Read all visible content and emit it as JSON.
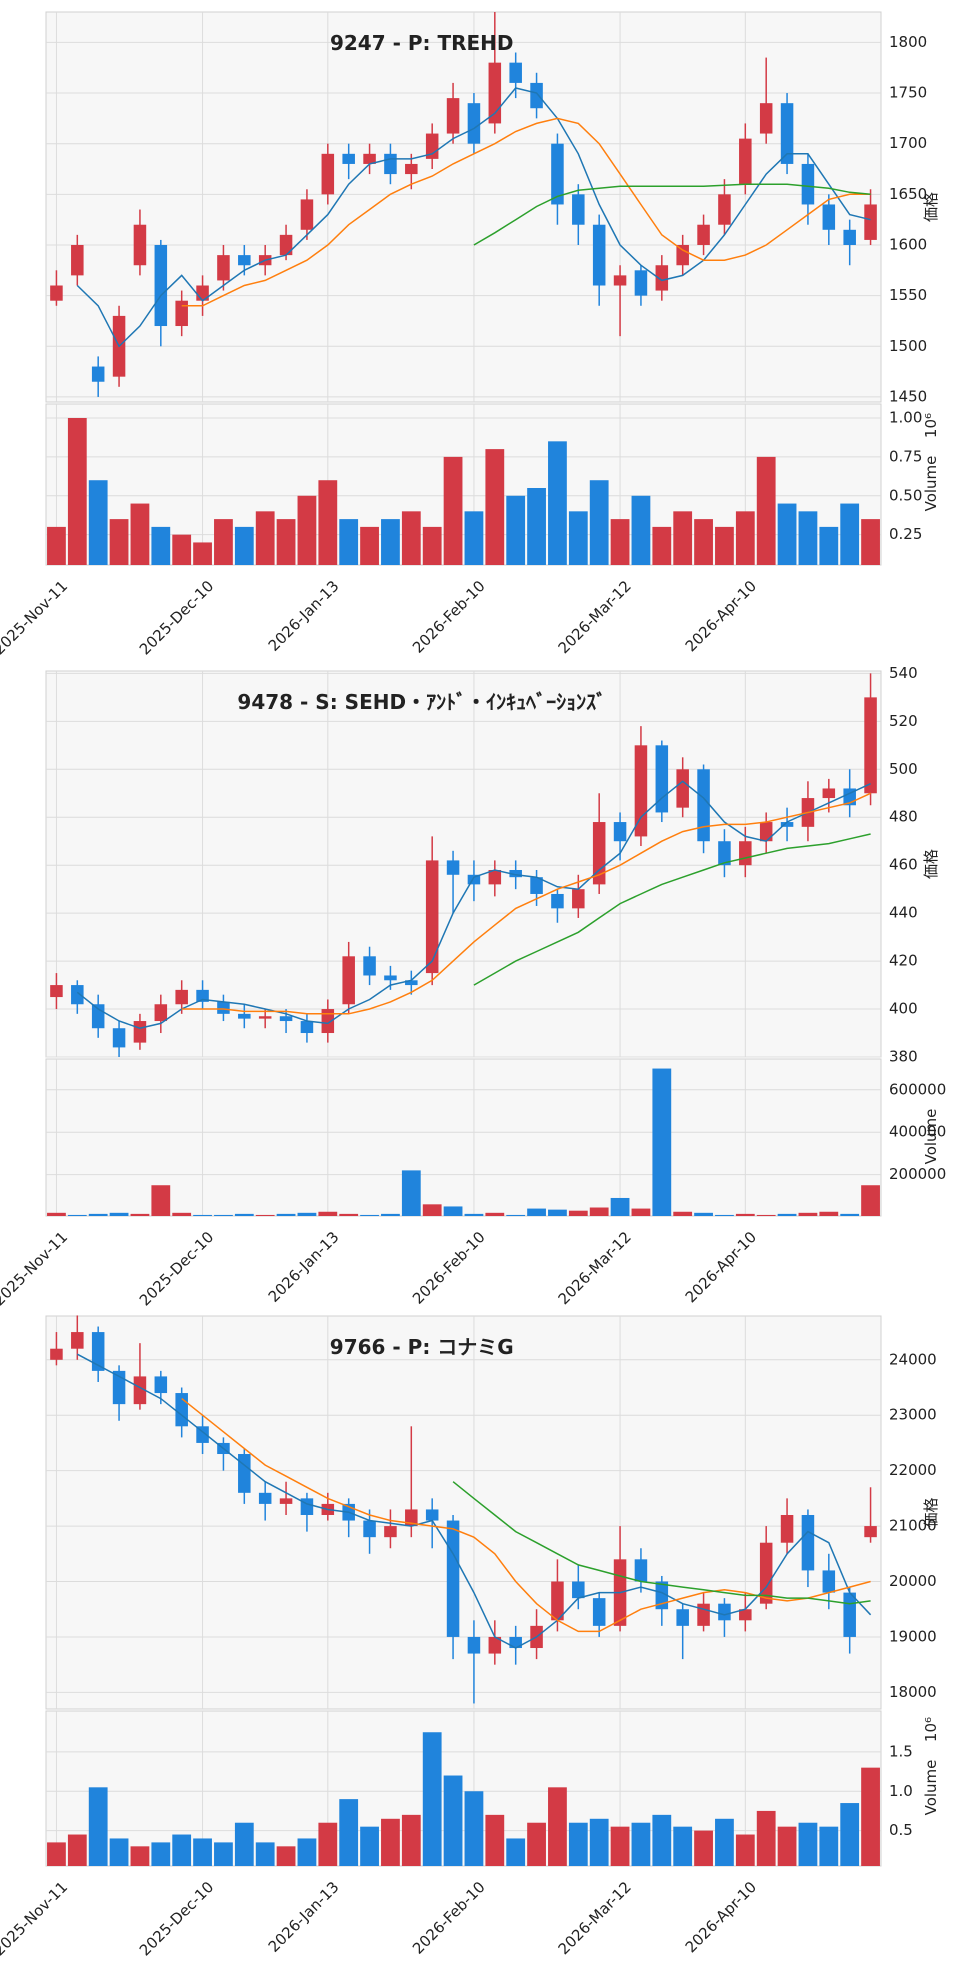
{
  "chart_data": [
    {
      "type": "candlestick",
      "title": "9247 - P: TREHD",
      "categories": [
        "2025-Nov-11",
        null,
        null,
        null,
        null,
        null,
        null,
        "2025-Dec-10",
        null,
        null,
        null,
        null,
        null,
        "2026-Jan-13",
        null,
        null,
        null,
        null,
        null,
        null,
        "2026-Feb-10",
        null,
        null,
        null,
        null,
        null,
        null,
        "2026-Mar-12",
        null,
        null,
        null,
        null,
        null,
        "2026-Apr-10",
        null,
        null,
        null,
        null,
        null,
        null
      ],
      "open": [
        1545,
        1570,
        1480,
        1470,
        1580,
        1600,
        1520,
        1545,
        1565,
        1590,
        1580,
        1590,
        1615,
        1650,
        1690,
        1680,
        1690,
        1670,
        1685,
        1710,
        1740,
        1720,
        1780,
        1760,
        1700,
        1650,
        1620,
        1560,
        1575,
        1555,
        1580,
        1600,
        1620,
        1660,
        1710,
        1740,
        1680,
        1640,
        1615,
        1605
      ],
      "high": [
        1575,
        1610,
        1490,
        1540,
        1635,
        1605,
        1555,
        1570,
        1600,
        1600,
        1600,
        1620,
        1655,
        1700,
        1700,
        1700,
        1700,
        1690,
        1720,
        1760,
        1750,
        1830,
        1790,
        1770,
        1710,
        1660,
        1630,
        1580,
        1580,
        1590,
        1610,
        1630,
        1665,
        1720,
        1785,
        1750,
        1690,
        1650,
        1625,
        1655
      ],
      "low": [
        1540,
        1560,
        1450,
        1460,
        1570,
        1500,
        1510,
        1530,
        1555,
        1570,
        1570,
        1585,
        1605,
        1640,
        1665,
        1670,
        1660,
        1655,
        1675,
        1700,
        1690,
        1710,
        1745,
        1725,
        1620,
        1600,
        1540,
        1510,
        1540,
        1545,
        1570,
        1590,
        1610,
        1650,
        1700,
        1670,
        1620,
        1600,
        1580,
        1600
      ],
      "close": [
        1560,
        1600,
        1465,
        1530,
        1620,
        1520,
        1545,
        1560,
        1590,
        1580,
        1590,
        1610,
        1645,
        1690,
        1680,
        1690,
        1670,
        1680,
        1710,
        1745,
        1700,
        1780,
        1760,
        1735,
        1640,
        1620,
        1560,
        1570,
        1550,
        1580,
        1600,
        1620,
        1650,
        1705,
        1740,
        1680,
        1640,
        1615,
        1600,
        1640
      ],
      "volume": [
        0.3,
        1.0,
        0.6,
        0.35,
        0.45,
        0.3,
        0.25,
        0.2,
        0.35,
        0.3,
        0.4,
        0.35,
        0.5,
        0.6,
        0.35,
        0.3,
        0.35,
        0.4,
        0.3,
        0.75,
        0.4,
        0.8,
        0.5,
        0.55,
        0.85,
        0.4,
        0.6,
        0.35,
        0.5,
        0.3,
        0.4,
        0.35,
        0.3,
        0.4,
        0.75,
        0.45,
        0.4,
        0.3,
        0.45,
        0.35
      ],
      "up_color": "#d33a45",
      "down_color": "#2084dc",
      "lines": [
        {
          "color": "#1f77b4",
          "values": [
            null,
            1560,
            1540,
            1500,
            1520,
            1550,
            1570,
            1545,
            1560,
            1575,
            1585,
            1590,
            1610,
            1630,
            1660,
            1680,
            1685,
            1685,
            1690,
            1705,
            1715,
            1730,
            1755,
            1750,
            1725,
            1690,
            1640,
            1600,
            1580,
            1565,
            1570,
            1585,
            1610,
            1640,
            1670,
            1690,
            1690,
            1660,
            1630,
            1625
          ]
        },
        {
          "color": "#ff7f0e",
          "values": [
            null,
            null,
            null,
            null,
            null,
            null,
            1540,
            1540,
            1550,
            1560,
            1565,
            1575,
            1585,
            1600,
            1620,
            1635,
            1650,
            1660,
            1668,
            1680,
            1690,
            1700,
            1712,
            1720,
            1725,
            1720,
            1700,
            1670,
            1640,
            1610,
            1595,
            1585,
            1585,
            1590,
            1600,
            1615,
            1630,
            1645,
            1650,
            1650
          ]
        },
        {
          "color": "#2ca02c",
          "values": [
            null,
            null,
            null,
            null,
            null,
            null,
            null,
            null,
            null,
            null,
            null,
            null,
            null,
            null,
            null,
            null,
            null,
            null,
            null,
            null,
            1600,
            1612,
            1625,
            1638,
            1648,
            1654,
            1656,
            1658,
            1658,
            1658,
            1658,
            1658,
            1659,
            1660,
            1660,
            1660,
            1658,
            1656,
            1652,
            1650
          ]
        }
      ],
      "ylim": [
        1445,
        1830
      ],
      "yticks": [
        1450,
        1500,
        1550,
        1600,
        1650,
        1700,
        1750,
        1800
      ],
      "ylabel": "価格",
      "volume_ylim": [
        0.055,
        1.09
      ],
      "volume_yticks": [
        0.25,
        {
          "value": 0.5,
          "label": "0.50"
        },
        0.75,
        {
          "value": 1,
          "label": "1.00"
        }
      ],
      "volume_label": "Volume",
      "volume_offset_label": "10⁶",
      "grid": true
    },
    {
      "type": "candlestick",
      "title": "9478 - S: SEHD・ｱﾝﾄﾞ・ｲﾝｷｭﾍﾞｰｼｮﾝｽﾞ",
      "categories": [
        "2025-Nov-11",
        null,
        null,
        null,
        null,
        null,
        null,
        "2025-Dec-10",
        null,
        null,
        null,
        null,
        null,
        "2026-Jan-13",
        null,
        null,
        null,
        null,
        null,
        null,
        "2026-Feb-10",
        null,
        null,
        null,
        null,
        null,
        null,
        "2026-Mar-12",
        null,
        null,
        null,
        null,
        null,
        "2026-Apr-10",
        null,
        null,
        null,
        null,
        null,
        null
      ],
      "open": [
        405,
        410,
        402,
        392,
        386,
        395,
        402,
        408,
        403,
        398,
        396,
        397,
        395,
        390,
        402,
        422,
        414,
        412,
        415,
        462,
        456,
        452,
        458,
        455,
        448,
        442,
        452,
        478,
        472,
        510,
        484,
        500,
        470,
        460,
        470,
        478,
        476,
        488,
        492,
        490
      ],
      "high": [
        415,
        412,
        406,
        395,
        398,
        406,
        412,
        412,
        406,
        402,
        400,
        400,
        398,
        404,
        428,
        426,
        418,
        416,
        472,
        466,
        462,
        462,
        462,
        458,
        450,
        456,
        490,
        482,
        518,
        512,
        505,
        502,
        475,
        476,
        482,
        484,
        495,
        496,
        500,
        540
      ],
      "low": [
        400,
        398,
        388,
        380,
        383,
        390,
        398,
        400,
        395,
        392,
        392,
        390,
        386,
        386,
        398,
        410,
        408,
        406,
        410,
        440,
        445,
        447,
        450,
        443,
        436,
        438,
        448,
        462,
        468,
        478,
        480,
        465,
        455,
        455,
        465,
        470,
        470,
        482,
        480,
        485
      ],
      "close": [
        410,
        402,
        392,
        384,
        395,
        402,
        408,
        403,
        398,
        396,
        397,
        395,
        390,
        400,
        422,
        414,
        412,
        410,
        462,
        456,
        452,
        458,
        455,
        448,
        442,
        450,
        478,
        470,
        510,
        482,
        500,
        470,
        460,
        470,
        478,
        476,
        488,
        492,
        485,
        530
      ],
      "volume": [
        20000,
        10000,
        15000,
        20000,
        15000,
        150000,
        20000,
        10000,
        10000,
        15000,
        10000,
        15000,
        20000,
        25000,
        15000,
        10000,
        15000,
        220000,
        60000,
        50000,
        15000,
        20000,
        10000,
        40000,
        35000,
        30000,
        45000,
        90000,
        40000,
        700000,
        25000,
        20000,
        10000,
        15000,
        10000,
        15000,
        20000,
        25000,
        15000,
        150000
      ],
      "up_color": "#d33a45",
      "down_color": "#2084dc",
      "lines": [
        {
          "color": "#1f77b4",
          "values": [
            null,
            407,
            400,
            395,
            392,
            394,
            400,
            404,
            403,
            402,
            400,
            398,
            395,
            394,
            400,
            404,
            410,
            412,
            420,
            440,
            455,
            458,
            456,
            455,
            451,
            450,
            458,
            465,
            480,
            488,
            495,
            488,
            478,
            472,
            470,
            478,
            482,
            486,
            490,
            494
          ]
        },
        {
          "color": "#ff7f0e",
          "values": [
            null,
            null,
            null,
            null,
            null,
            null,
            400,
            400,
            400,
            399,
            399,
            399,
            398,
            398,
            398,
            400,
            403,
            407,
            412,
            420,
            428,
            435,
            442,
            446,
            450,
            453,
            456,
            460,
            465,
            470,
            474,
            476,
            477,
            477,
            478,
            480,
            482,
            484,
            486,
            490
          ]
        },
        {
          "color": "#2ca02c",
          "values": [
            null,
            null,
            null,
            null,
            null,
            null,
            null,
            null,
            null,
            null,
            null,
            null,
            null,
            null,
            null,
            null,
            null,
            null,
            null,
            null,
            410,
            415,
            420,
            424,
            428,
            432,
            438,
            444,
            448,
            452,
            455,
            458,
            461,
            463,
            465,
            467,
            468,
            469,
            471,
            473
          ]
        }
      ],
      "ylim": [
        380,
        541
      ],
      "yticks": [
        380,
        400,
        420,
        440,
        460,
        480,
        500,
        520,
        540
      ],
      "ylabel": "価格",
      "volume_ylim": [
        5000,
        745000
      ],
      "volume_yticks": [
        200000,
        400000,
        600000
      ],
      "volume_label": "Volume",
      "grid": true
    },
    {
      "type": "candlestick",
      "title": "9766 - P: コナミG",
      "categories": [
        "2025-Nov-11",
        null,
        null,
        null,
        null,
        null,
        null,
        "2025-Dec-10",
        null,
        null,
        null,
        null,
        null,
        "2026-Jan-13",
        null,
        null,
        null,
        null,
        null,
        null,
        "2026-Feb-10",
        null,
        null,
        null,
        null,
        null,
        null,
        "2026-Mar-12",
        null,
        null,
        null,
        null,
        null,
        "2026-Apr-10",
        null,
        null,
        null,
        null,
        null,
        null
      ],
      "open": [
        24000,
        24200,
        24500,
        23800,
        23200,
        23700,
        23400,
        22800,
        22500,
        22300,
        21600,
        21400,
        21500,
        21200,
        21400,
        21100,
        20800,
        21000,
        21300,
        21100,
        19000,
        18700,
        19000,
        18800,
        19300,
        20000,
        19700,
        19200,
        20400,
        20000,
        19500,
        19200,
        19600,
        19300,
        19600,
        20700,
        21200,
        20200,
        19800,
        20800
      ],
      "high": [
        24500,
        24800,
        24600,
        23900,
        24300,
        23800,
        23500,
        23000,
        22600,
        22400,
        21800,
        21800,
        21600,
        21600,
        21500,
        21300,
        21300,
        22800,
        21500,
        21200,
        19300,
        19300,
        19200,
        19500,
        20400,
        20300,
        19800,
        21000,
        20600,
        20100,
        19600,
        19800,
        19700,
        19800,
        21000,
        21500,
        21300,
        20500,
        19900,
        21700
      ],
      "low": [
        23900,
        24000,
        23600,
        22900,
        23100,
        23200,
        22600,
        22300,
        22000,
        21400,
        21100,
        21200,
        20900,
        21100,
        20800,
        20500,
        20600,
        20800,
        20600,
        18600,
        17800,
        18500,
        18500,
        18600,
        19100,
        19500,
        19000,
        19100,
        19800,
        19200,
        18600,
        19100,
        19000,
        19100,
        19500,
        20500,
        19900,
        19500,
        18700,
        20700
      ],
      "close": [
        24200,
        24500,
        23800,
        23200,
        23700,
        23400,
        22800,
        22500,
        22300,
        21600,
        21400,
        21500,
        21200,
        21400,
        21100,
        20800,
        21000,
        21300,
        21100,
        19000,
        18700,
        19000,
        18800,
        19200,
        20000,
        19700,
        19200,
        20400,
        20000,
        19500,
        19200,
        19600,
        19300,
        19500,
        20700,
        21200,
        20200,
        19800,
        19000,
        21000
      ],
      "volume": [
        0.35,
        0.45,
        1.05,
        0.4,
        0.3,
        0.35,
        0.45,
        0.4,
        0.35,
        0.6,
        0.35,
        0.3,
        0.4,
        0.6,
        0.9,
        0.55,
        0.65,
        0.7,
        1.75,
        1.2,
        1.0,
        0.7,
        0.4,
        0.6,
        1.05,
        0.6,
        0.65,
        0.55,
        0.6,
        0.7,
        0.55,
        0.5,
        0.65,
        0.45,
        0.75,
        0.55,
        0.6,
        0.55,
        0.85,
        1.3
      ],
      "up_color": "#d33a45",
      "down_color": "#2084dc",
      "lines": [
        {
          "color": "#1f77b4",
          "values": [
            null,
            24100,
            23900,
            23700,
            23500,
            23300,
            23000,
            22700,
            22400,
            22100,
            21800,
            21600,
            21400,
            21300,
            21250,
            21100,
            21050,
            21000,
            21100,
            20500,
            19800,
            19000,
            18800,
            19000,
            19300,
            19700,
            19800,
            19800,
            19900,
            19800,
            19600,
            19500,
            19400,
            19500,
            19900,
            20500,
            20900,
            20700,
            19800,
            19400
          ]
        },
        {
          "color": "#ff7f0e",
          "values": [
            null,
            null,
            null,
            null,
            null,
            null,
            23300,
            23000,
            22700,
            22400,
            22100,
            21900,
            21700,
            21500,
            21350,
            21200,
            21100,
            21050,
            21000,
            20950,
            20800,
            20500,
            20000,
            19600,
            19300,
            19100,
            19100,
            19300,
            19500,
            19600,
            19700,
            19800,
            19850,
            19800,
            19700,
            19650,
            19700,
            19800,
            19900,
            20000
          ]
        },
        {
          "color": "#2ca02c",
          "values": [
            null,
            null,
            null,
            null,
            null,
            null,
            null,
            null,
            null,
            null,
            null,
            null,
            null,
            null,
            null,
            null,
            null,
            null,
            null,
            21800,
            21500,
            21200,
            20900,
            20700,
            20500,
            20300,
            20200,
            20100,
            20000,
            19950,
            19900,
            19850,
            19800,
            19750,
            19750,
            19700,
            19700,
            19650,
            19600,
            19650
          ]
        }
      ],
      "ylim": [
        17700,
        24790
      ],
      "yticks": [
        18000,
        19000,
        20000,
        21000,
        22000,
        23000,
        24000
      ],
      "ylabel": "価格",
      "volume_ylim": [
        0.05,
        2.02
      ],
      "volume_yticks": [
        0.5,
        {
          "value": 1,
          "label": "1.0"
        },
        1.5
      ],
      "volume_label": "Volume",
      "volume_offset_label": "10⁶",
      "grid": true
    }
  ]
}
